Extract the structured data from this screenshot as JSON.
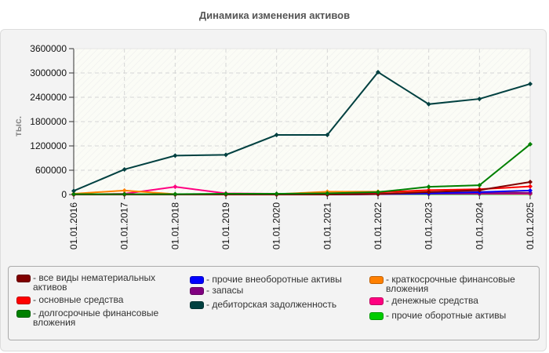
{
  "header": {
    "title": "Динамика изменения активов"
  },
  "chart_data": {
    "type": "line",
    "title": "Динамика изменения активов",
    "xlabel": "",
    "ylabel": "тыс.",
    "ylim": [
      0,
      3600000
    ],
    "yticks": [
      "0",
      "600000",
      "1200000",
      "1800000",
      "2400000",
      "3000000",
      "3600000"
    ],
    "grid": true,
    "legend_position": "bottom",
    "categories": [
      "01.01.2016",
      "01.01.2017",
      "01.01.2018",
      "01.01.2019",
      "01.01.2020",
      "01.01.2021",
      "01.01.2022",
      "01.01.2023",
      "01.01.2024",
      "01.01.2025"
    ],
    "series": [
      {
        "name": "все виды нематериальных активов",
        "color": "#800000",
        "values": [
          0,
          0,
          0,
          0,
          0,
          0,
          10000,
          60000,
          110000,
          310000
        ]
      },
      {
        "name": "основные средства",
        "color": "#ff0000",
        "values": [
          0,
          0,
          0,
          0,
          0,
          10000,
          50000,
          110000,
          130000,
          200000
        ]
      },
      {
        "name": "долгосрочные финансовые вложения",
        "color": "#008000",
        "values": [
          10000,
          10000,
          10000,
          20000,
          20000,
          30000,
          60000,
          190000,
          230000,
          1240000
        ]
      },
      {
        "name": "прочие внеоборотные активы",
        "color": "#0000ff",
        "values": [
          0,
          0,
          0,
          0,
          0,
          0,
          10000,
          30000,
          60000,
          100000
        ]
      },
      {
        "name": "запасы",
        "color": "#800080",
        "values": [
          0,
          0,
          0,
          0,
          0,
          0,
          10000,
          20000,
          30000,
          40000
        ]
      },
      {
        "name": "дебиторская задолженность",
        "color": "#004040",
        "values": [
          90000,
          620000,
          960000,
          980000,
          1470000,
          1470000,
          3020000,
          2230000,
          2360000,
          2730000
        ]
      },
      {
        "name": "краткосрочные финансовые вложения",
        "color": "#ff8000",
        "values": [
          20000,
          100000,
          10000,
          10000,
          10000,
          70000,
          70000,
          70000,
          70000,
          40000
        ]
      },
      {
        "name": "денежные средства",
        "color": "#ff0080",
        "values": [
          0,
          20000,
          190000,
          30000,
          20000,
          20000,
          20000,
          20000,
          20000,
          20000
        ]
      },
      {
        "name": "прочие оборотные активы",
        "color": "#00cc00",
        "values": [
          10000,
          10000,
          10000,
          10000,
          10000,
          10000,
          10000,
          10000,
          10000,
          10000
        ]
      }
    ]
  },
  "legend": {
    "items": [
      {
        "label": "- все виды нематериальных\nактивов",
        "color": "#800000"
      },
      {
        "label": "- основные средства",
        "color": "#ff0000"
      },
      {
        "label": "- долгосрочные финансовые\nвложения",
        "color": "#008000"
      },
      {
        "label": "- прочие внеоборотные активы",
        "color": "#0000ff"
      },
      {
        "label": "- запасы",
        "color": "#800080"
      },
      {
        "label": "- дебиторская задолженность",
        "color": "#004040"
      },
      {
        "label": "- краткосрочные финансовые\nвложения",
        "color": "#ff8000"
      },
      {
        "label": "- денежные средства",
        "color": "#ff0080"
      },
      {
        "label": "- прочие оборотные активы",
        "color": "#00cc00"
      }
    ]
  }
}
